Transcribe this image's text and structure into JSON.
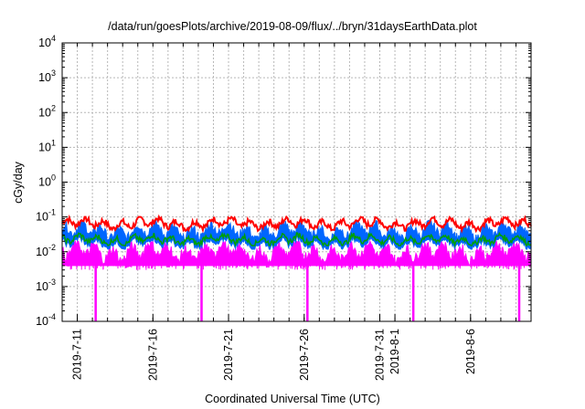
{
  "chart_data": {
    "type": "line",
    "title": "/data/run/goesPlots/archive/2019-08-09/flux/../bryn/31daysEarthData.plot",
    "xlabel": "Coordinated Universal Time (UTC)",
    "ylabel": "cGy/day",
    "y_scale": "log",
    "ylim": [
      0.0001,
      10000
    ],
    "y_ticks": [
      {
        "base": "10",
        "exp": "-4"
      },
      {
        "base": "10",
        "exp": "-3"
      },
      {
        "base": "10",
        "exp": "-2"
      },
      {
        "base": "10",
        "exp": "-1"
      },
      {
        "base": "10",
        "exp": "0"
      },
      {
        "base": "10",
        "exp": "1"
      },
      {
        "base": "10",
        "exp": "2"
      },
      {
        "base": "10",
        "exp": "3"
      },
      {
        "base": "10",
        "exp": "4"
      }
    ],
    "x_ticks": [
      "2019-7-11",
      "2019-7-16",
      "2019-7-21",
      "2019-7-26",
      "2019-7-31",
      "2019-8-1",
      "2019-8-6"
    ],
    "grid": true,
    "series_colors": [
      "#ff0000",
      "#0066ff",
      "#00a000",
      "#ff00ff"
    ],
    "series": [
      {
        "color": "#ff0000",
        "typical": 0.065,
        "range": [
          0.04,
          0.1
        ]
      },
      {
        "color": "#0066ff",
        "typical": 0.04,
        "range": [
          0.02,
          0.08
        ]
      },
      {
        "color": "#00a000",
        "typical": 0.022,
        "range": [
          0.015,
          0.035
        ]
      },
      {
        "color": "#ff00ff",
        "typical": 0.01,
        "range": [
          0.004,
          0.02
        ],
        "dips_to": 0.0001,
        "dip_dates": [
          "2019-7-12",
          "2019-7-19",
          "2019-7-26",
          "2019-8-2",
          "2019-8-9"
        ]
      }
    ]
  }
}
